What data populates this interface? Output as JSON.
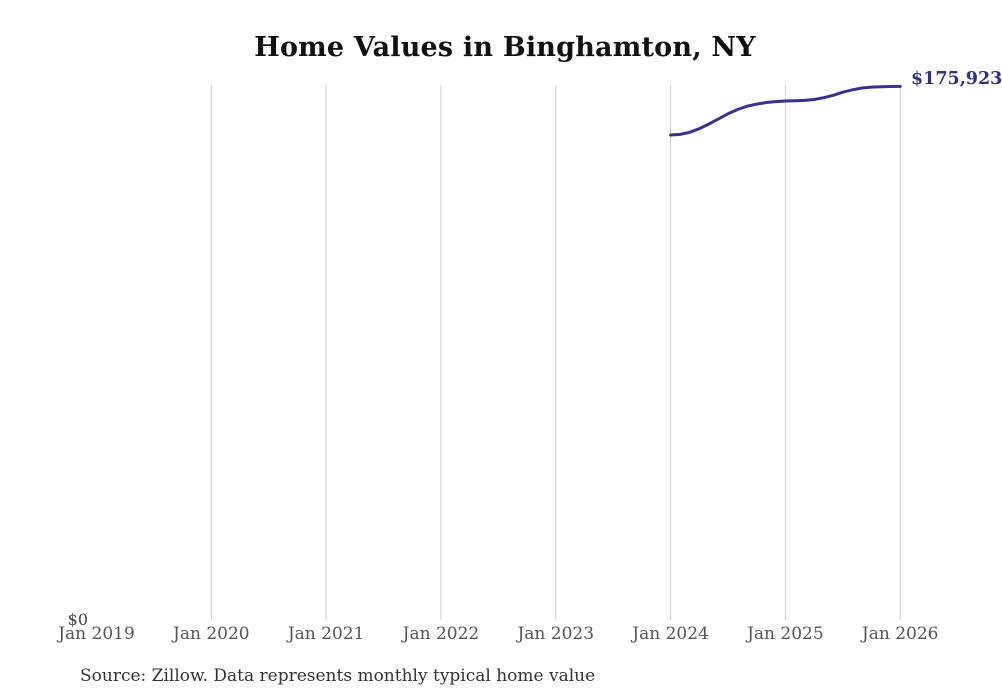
{
  "chart_data": {
    "type": "line",
    "title": "Home Values in Binghamton, NY",
    "source_note": "Source: Zillow. Data represents monthly typical home value",
    "x_tick_labels": [
      "Jan 2019",
      "Jan 2020",
      "Jan 2021",
      "Jan 2022",
      "Jan 2023",
      "Jan 2024",
      "Jan 2025",
      "Jan 2026"
    ],
    "y_axis": {
      "zero_label": "$0",
      "min": 0
    },
    "ylim": [
      0,
      176500
    ],
    "grid": "vertical-only",
    "legend": "none",
    "end_label": "$175,923",
    "line_color": "#39318f",
    "end_label_color": "#32317e",
    "grid_color": "#cccccc",
    "series": [
      {
        "name": "Typical home value",
        "x": [
          "2024-01",
          "2024-02",
          "2024-03",
          "2024-04",
          "2024-05",
          "2024-06",
          "2024-07",
          "2024-08",
          "2024-09",
          "2024-10",
          "2024-11",
          "2024-12",
          "2025-01",
          "2025-02",
          "2025-03",
          "2025-04",
          "2025-05",
          "2025-06",
          "2025-07",
          "2025-08",
          "2025-09",
          "2025-10",
          "2025-11",
          "2025-12",
          "2026-01"
        ],
        "values": [
          159900,
          160100,
          160800,
          162000,
          163500,
          165200,
          166900,
          168300,
          169400,
          170100,
          170600,
          170900,
          171100,
          171200,
          171300,
          171600,
          172200,
          173000,
          174000,
          174800,
          175400,
          175700,
          175800,
          175900,
          175923
        ]
      }
    ]
  }
}
